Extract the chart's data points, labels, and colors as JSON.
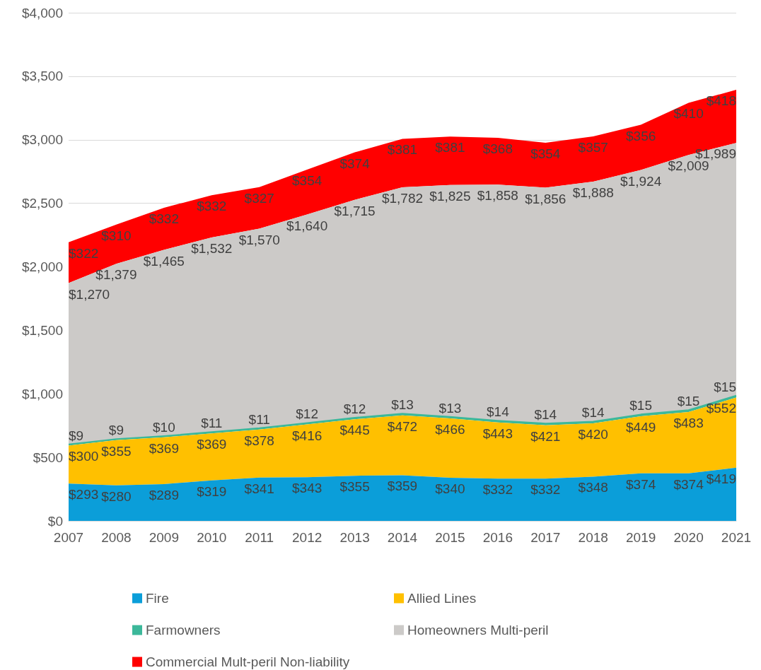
{
  "chart_data": {
    "type": "area",
    "stacked": true,
    "categories": [
      "2007",
      "2008",
      "2009",
      "2010",
      "2011",
      "2012",
      "2013",
      "2014",
      "2015",
      "2016",
      "2017",
      "2018",
      "2019",
      "2020",
      "2021"
    ],
    "ylim": [
      0,
      4000
    ],
    "yticks": [
      {
        "value": 0,
        "label": "$0"
      },
      {
        "value": 500,
        "label": "$500"
      },
      {
        "value": 1000,
        "label": "$1,000"
      },
      {
        "value": 1500,
        "label": "$1,500"
      },
      {
        "value": 2000,
        "label": "$2,000"
      },
      {
        "value": 2500,
        "label": "$2,500"
      },
      {
        "value": 3000,
        "label": "$3,000"
      },
      {
        "value": 3500,
        "label": "$3,500"
      },
      {
        "value": 4000,
        "label": "$4,000"
      }
    ],
    "grid": "y",
    "legend": "bottom",
    "series": [
      {
        "name": "Fire",
        "color": "#0b9ed9",
        "values": [
          293,
          280,
          289,
          319,
          341,
          343,
          355,
          359,
          340,
          332,
          332,
          348,
          374,
          374,
          419
        ],
        "value_labels": [
          "$293",
          "$280",
          "$289",
          "$319",
          "$341",
          "$343",
          "$355",
          "$359",
          "$340",
          "$332",
          "$332",
          "$348",
          "$374",
          "$374",
          "$419"
        ]
      },
      {
        "name": "Allied Lines",
        "color": "#ffc000",
        "values": [
          300,
          355,
          369,
          369,
          378,
          416,
          445,
          472,
          466,
          443,
          421,
          420,
          449,
          483,
          552
        ],
        "value_labels": [
          "$300",
          "$355",
          "$369",
          "$369",
          "$378",
          "$416",
          "$445",
          "$472",
          "$466",
          "$443",
          "$421",
          "$420",
          "$449",
          "$483",
          "$552"
        ]
      },
      {
        "name": "Farmowners",
        "color": "#3cb89a",
        "values": [
          9,
          9,
          10,
          11,
          11,
          12,
          12,
          13,
          13,
          14,
          14,
          14,
          15,
          15,
          15
        ],
        "value_labels": [
          "$9",
          "$9",
          "$10",
          "$11",
          "$11",
          "$12",
          "$12",
          "$13",
          "$13",
          "$14",
          "$14",
          "$14",
          "$15",
          "$15",
          "$15"
        ]
      },
      {
        "name": "Homeowners Multi-peril",
        "color": "#cccac8",
        "values": [
          1270,
          1379,
          1465,
          1532,
          1570,
          1640,
          1715,
          1782,
          1825,
          1858,
          1856,
          1888,
          1924,
          2009,
          1989
        ],
        "value_labels": [
          "$1,270",
          "$1,379",
          "$1,465",
          "$1,532",
          "$1,570",
          "$1,640",
          "$1,715",
          "$1,782",
          "$1,825",
          "$1,858",
          "$1,856",
          "$1,888",
          "$1,924",
          "$2,009",
          "$1,989"
        ]
      },
      {
        "name": "Commercial Mult-peril Non-liability",
        "color": "#ff0000",
        "values": [
          322,
          310,
          332,
          332,
          327,
          354,
          374,
          381,
          381,
          368,
          354,
          357,
          356,
          410,
          418
        ],
        "value_labels": [
          "$322",
          "$310",
          "$332",
          "$332",
          "$327",
          "$354",
          "$374",
          "$381",
          "$381",
          "$368",
          "$354",
          "$357",
          "$356",
          "$410",
          "$418"
        ]
      }
    ]
  }
}
